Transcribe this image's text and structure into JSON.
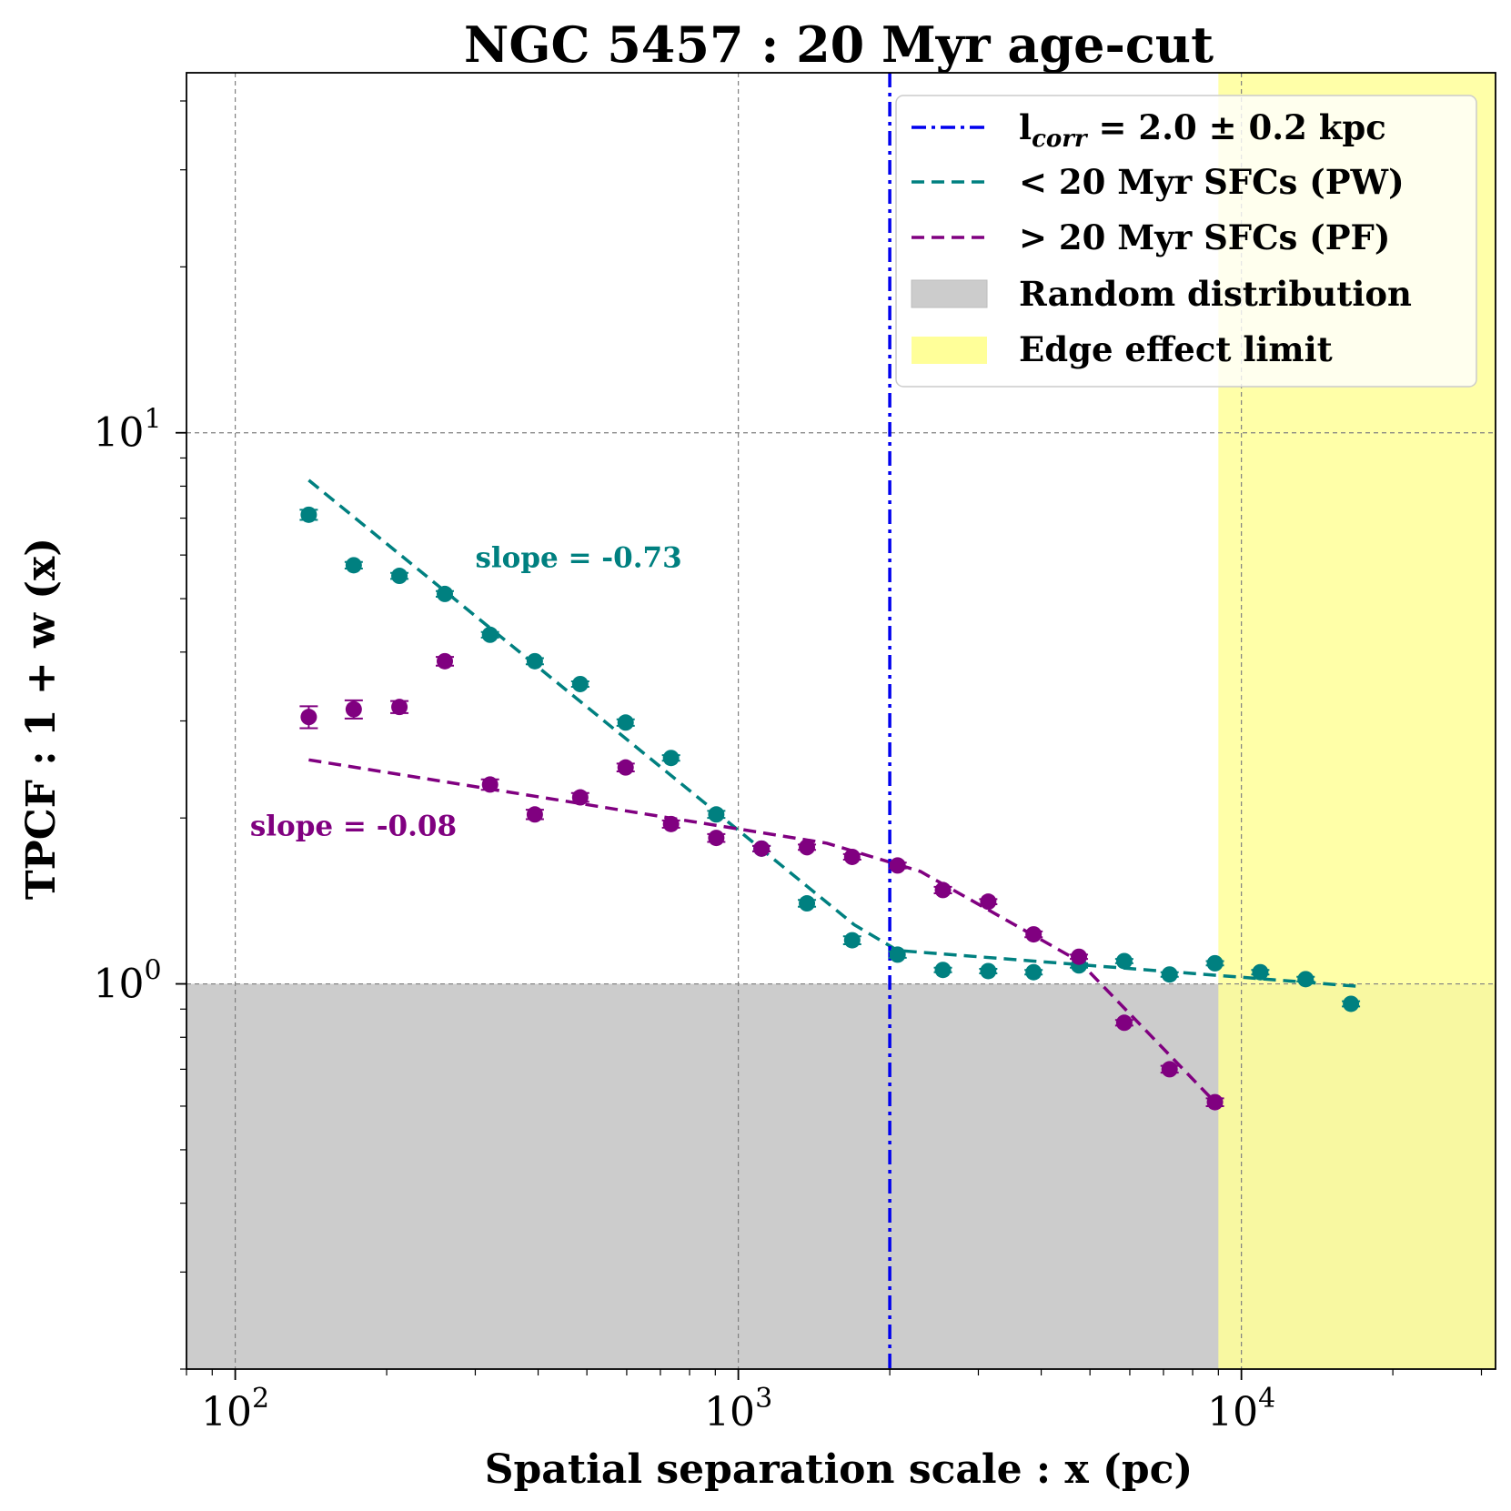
{
  "chart_data": {
    "type": "scatter",
    "title": "NGC 5457 : 20 Myr age-cut",
    "xlabel": "Spatial separation scale : x (pc)",
    "ylabel": "TPCF : 1 + w (x)",
    "xscale": "log",
    "yscale": "log",
    "xlim": [
      80,
      32000
    ],
    "ylim": [
      0.2,
      45
    ],
    "grid": true,
    "xticks": [
      {
        "base": "10",
        "exp": "2",
        "value": 100
      },
      {
        "base": "10",
        "exp": "3",
        "value": 1000
      },
      {
        "base": "10",
        "exp": "4",
        "value": 10000
      }
    ],
    "yticks": [
      {
        "base": "10",
        "exp": "0",
        "value": 1
      },
      {
        "base": "10",
        "exp": "1",
        "value": 10
      }
    ],
    "legend_position": "top-right",
    "legend": [
      {
        "label_main": "l",
        "label_sub": "corr",
        "label_rest": " = 2.0 ± 0.2 kpc",
        "style": "dashdot",
        "color": "#0000ee"
      },
      {
        "label": "< 20 Myr SFCs (PW)",
        "style": "dashed",
        "color": "#008080"
      },
      {
        "label": "> 20 Myr SFCs (PF)",
        "style": "dashed",
        "color": "#800080"
      },
      {
        "label": "Random distribution",
        "style": "patch",
        "color": "#cccccc"
      },
      {
        "label": "Edge effect limit",
        "style": "patch",
        "color": "#ffff99"
      }
    ],
    "random_region": {
      "y_max": 1.0,
      "color": "#cccccc"
    },
    "edge_region": {
      "x_min": 9000,
      "color": "#ffff99"
    },
    "correlation_length": {
      "value": 2000,
      "color": "#0000ee"
    },
    "series": [
      {
        "name": "< 20 Myr SFCs (PW)",
        "color": "#008080",
        "x": [
          140,
          172,
          212,
          261,
          321,
          394,
          485,
          597,
          735,
          904,
          1112,
          1369,
          1684,
          2073,
          2551,
          3139,
          3863,
          4754,
          5850,
          7199,
          8860,
          10903,
          13418,
          16512
        ],
        "y": [
          7.1,
          5.75,
          5.5,
          5.1,
          4.3,
          3.85,
          3.5,
          2.98,
          2.57,
          2.03,
          1.76,
          1.4,
          1.2,
          1.13,
          1.06,
          1.055,
          1.05,
          1.08,
          1.1,
          1.04,
          1.09,
          1.05,
          1.02,
          0.92
        ],
        "yerr": [
          0.15,
          0.08,
          0.07,
          0.06,
          0.05,
          0.05,
          0.04,
          0.04,
          0.03,
          0.03,
          0.02,
          0.02,
          0.02,
          0.015,
          0.01,
          0.01,
          0.01,
          0.01,
          0.01,
          0.01,
          0.01,
          0.01,
          0.01,
          0.01
        ]
      },
      {
        "name": "> 20 Myr SFCs (PF)",
        "color": "#800080",
        "x": [
          140,
          172,
          212,
          261,
          321,
          394,
          485,
          597,
          735,
          904,
          1112,
          1369,
          1684,
          2073,
          2551,
          3139,
          3863,
          4754,
          5850,
          7199,
          8860
        ],
        "y": [
          3.05,
          3.15,
          3.18,
          3.85,
          2.3,
          2.03,
          2.18,
          2.47,
          1.95,
          1.84,
          1.76,
          1.77,
          1.7,
          1.64,
          1.48,
          1.41,
          1.23,
          1.12,
          0.85,
          0.7,
          0.61
        ],
        "yerr": [
          0.14,
          0.12,
          0.08,
          0.07,
          0.05,
          0.04,
          0.04,
          0.04,
          0.03,
          0.03,
          0.02,
          0.02,
          0.02,
          0.02,
          0.02,
          0.015,
          0.015,
          0.01,
          0.01,
          0.01,
          0.01
        ]
      }
    ],
    "fits": [
      {
        "name": "PW fit",
        "color": "#008080",
        "x": [
          140,
          1700,
          2073,
          17000
        ],
        "y": [
          8.2,
          1.28,
          1.15,
          0.99
        ]
      },
      {
        "name": "PF fit",
        "color": "#800080",
        "x": [
          140,
          1500,
          2300,
          4754,
          8860
        ],
        "y": [
          2.55,
          1.8,
          1.6,
          1.1,
          0.61
        ]
      }
    ],
    "annotations": [
      {
        "text": "slope = -0.73",
        "color": "#008080",
        "x": 300,
        "y": 5.7
      },
      {
        "text": "slope = -0.08",
        "color": "#800080",
        "x": 107,
        "y": 1.86
      }
    ]
  }
}
